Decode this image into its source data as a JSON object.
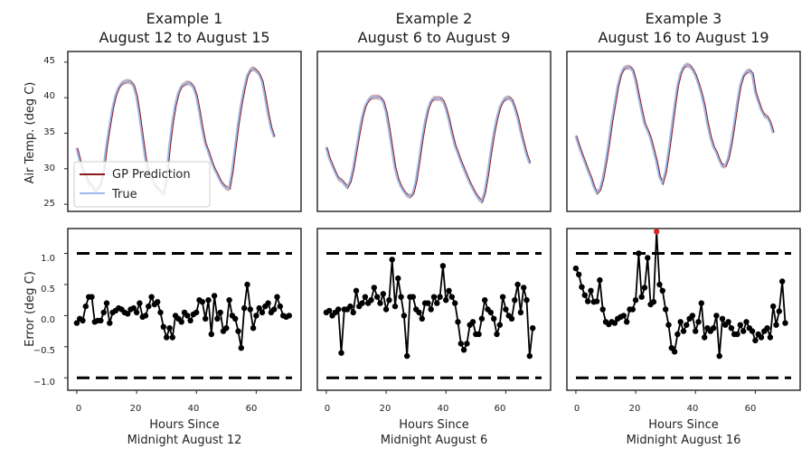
{
  "chart_data": [
    {
      "type": "line",
      "title_line1": "Example 1",
      "title_line2": "August 12 to August 15",
      "ylabel": "Air Temp. (deg C)",
      "ylim": [
        24,
        46.5
      ],
      "yticks": [
        "25",
        "30",
        "35",
        "40",
        "45"
      ],
      "series": [
        {
          "name": "GP Prediction",
          "color": "#8b1a1a",
          "values": [
            32.9,
            31.3,
            29.8,
            29.0,
            27.9,
            27.7,
            26.8,
            27.2,
            27.9,
            30.0,
            33.3,
            36.0,
            38.5,
            40.3,
            41.4,
            42.0,
            42.2,
            42.3,
            42.2,
            41.7,
            40.2,
            37.5,
            34.4,
            31.4,
            29.5,
            28.6,
            27.7,
            27.2,
            26.8,
            26.5,
            28.8,
            33.1,
            36.5,
            39.0,
            40.7,
            41.6,
            41.9,
            42.1,
            42.0,
            41.5,
            40.3,
            38.1,
            35.6,
            33.5,
            32.4,
            31.1,
            30.0,
            29.2,
            28.3,
            27.7,
            27.3,
            27.2,
            29.6,
            33.0,
            36.3,
            39.0,
            41.3,
            43.1,
            43.9,
            44.1,
            43.8,
            43.3,
            42.3,
            40.1,
            37.7,
            35.7,
            34.5
          ]
        },
        {
          "name": "True",
          "color": "#9db8e8",
          "values": [
            32.9,
            31.3,
            29.8,
            29.0,
            27.9,
            27.7,
            26.8,
            27.2,
            27.9,
            30.0,
            33.3,
            36.0,
            38.5,
            40.3,
            41.4,
            42.0,
            42.2,
            42.3,
            42.2,
            41.7,
            40.2,
            37.5,
            34.4,
            31.4,
            29.5,
            28.6,
            27.7,
            27.2,
            26.8,
            26.5,
            28.8,
            33.1,
            36.5,
            39.0,
            40.7,
            41.6,
            41.9,
            42.1,
            42.0,
            41.5,
            40.3,
            38.1,
            35.6,
            33.5,
            32.4,
            31.1,
            30.0,
            29.2,
            28.3,
            27.7,
            27.3,
            27.2,
            29.6,
            33.0,
            36.3,
            39.0,
            41.3,
            43.1,
            43.9,
            44.1,
            43.8,
            43.3,
            42.3,
            40.1,
            37.7,
            35.7,
            34.5
          ]
        }
      ],
      "legend": {
        "placement": "lower-left",
        "items": [
          "GP Prediction",
          "True"
        ]
      }
    },
    {
      "type": "line",
      "title_line1": "Example 2",
      "title_line2": "August 6 to August 9",
      "ylim": [
        24,
        46.5
      ],
      "series": [
        {
          "name": "GP Prediction",
          "color": "#8b1a1a",
          "values": [
            33.0,
            31.5,
            30.5,
            29.5,
            28.6,
            28.4,
            27.9,
            27.4,
            28.2,
            30.0,
            32.5,
            35.0,
            37.2,
            38.8,
            39.6,
            40.0,
            40.1,
            40.1,
            40.0,
            39.5,
            38.0,
            35.6,
            32.8,
            30.1,
            28.5,
            27.5,
            26.8,
            26.3,
            26.1,
            26.5,
            28.3,
            31.0,
            34.0,
            36.5,
            38.4,
            39.5,
            39.9,
            39.9,
            39.9,
            39.6,
            38.5,
            36.9,
            35.0,
            33.3,
            32.2,
            31.0,
            30.0,
            29.0,
            28.0,
            27.2,
            26.4,
            25.8,
            25.4,
            26.7,
            29.2,
            32.2,
            34.9,
            37.0,
            38.6,
            39.5,
            39.9,
            40.0,
            39.7,
            38.6,
            37.2,
            35.3,
            33.6,
            32.0,
            30.8
          ]
        },
        {
          "name": "True",
          "color": "#9db8e8",
          "values": [
            33.0,
            31.5,
            30.5,
            29.5,
            28.6,
            28.4,
            27.9,
            27.4,
            28.2,
            30.0,
            32.5,
            35.0,
            37.2,
            38.8,
            39.6,
            40.0,
            40.1,
            40.1,
            40.0,
            39.5,
            38.0,
            35.6,
            32.8,
            30.1,
            28.5,
            27.5,
            26.8,
            26.3,
            26.1,
            26.5,
            28.3,
            31.0,
            34.0,
            36.5,
            38.4,
            39.5,
            39.9,
            39.9,
            39.9,
            39.6,
            38.5,
            36.9,
            35.0,
            33.3,
            32.2,
            31.0,
            30.0,
            29.0,
            28.0,
            27.2,
            26.4,
            25.8,
            25.4,
            26.7,
            29.2,
            32.2,
            34.9,
            37.0,
            38.6,
            39.5,
            39.9,
            40.0,
            39.7,
            38.6,
            37.2,
            35.3,
            33.6,
            32.0,
            30.8
          ]
        }
      ]
    },
    {
      "type": "line",
      "title_line1": "Example 3",
      "title_line2": "August 16 to August 19",
      "ylim": [
        24,
        46.5
      ],
      "series": [
        {
          "name": "GP Prediction",
          "color": "#8b1a1a",
          "values": [
            34.6,
            33.3,
            32.1,
            31.0,
            29.8,
            28.8,
            27.5,
            26.6,
            27.0,
            28.5,
            30.8,
            33.5,
            36.5,
            39.0,
            41.5,
            43.2,
            44.1,
            44.3,
            44.3,
            43.9,
            42.4,
            40.2,
            38.2,
            36.3,
            35.4,
            34.3,
            32.7,
            31.0,
            28.9,
            28.0,
            29.5,
            32.3,
            35.4,
            38.6,
            41.6,
            43.4,
            44.3,
            44.6,
            44.5,
            44.0,
            43.2,
            42.0,
            40.6,
            38.8,
            36.4,
            34.5,
            33.1,
            32.3,
            31.2,
            30.4,
            30.4,
            31.5,
            33.6,
            36.3,
            39.2,
            41.7,
            43.1,
            43.6,
            43.8,
            43.4,
            40.8,
            39.5,
            38.3,
            37.5,
            37.3,
            36.5,
            35.1
          ]
        },
        {
          "name": "True",
          "color": "#9db8e8",
          "values": [
            34.6,
            33.3,
            32.1,
            31.0,
            29.8,
            28.8,
            27.5,
            26.6,
            27.0,
            28.5,
            30.8,
            33.5,
            36.5,
            39.0,
            41.5,
            43.2,
            44.1,
            44.3,
            44.3,
            43.9,
            42.4,
            40.2,
            38.2,
            36.3,
            35.4,
            34.3,
            32.7,
            31.0,
            28.9,
            28.0,
            29.5,
            32.3,
            35.4,
            38.6,
            41.6,
            43.4,
            44.3,
            44.6,
            44.5,
            44.0,
            43.2,
            42.0,
            40.6,
            38.8,
            36.4,
            34.5,
            33.1,
            32.3,
            31.2,
            30.4,
            30.4,
            31.5,
            33.6,
            36.3,
            39.2,
            41.7,
            43.1,
            43.6,
            43.8,
            43.4,
            40.8,
            39.5,
            38.3,
            37.5,
            37.3,
            36.5,
            35.1
          ]
        }
      ]
    },
    {
      "type": "scatter",
      "xlabel_line1": "Hours Since",
      "xlabel_line2": "Midnight August 12",
      "ylabel": "Error (deg C)",
      "xlim": [
        -3,
        75
      ],
      "ylim": [
        -1.2,
        1.4
      ],
      "xticks": [
        "0",
        "20",
        "40",
        "60"
      ],
      "yticks": [
        "1.0",
        "0.5",
        "0.0",
        "−0.5",
        "−1.0"
      ],
      "reference_lines": [
        1.0,
        -1.0
      ],
      "series": [
        {
          "name": "error",
          "color": "#000000",
          "values": [
            -0.12,
            -0.05,
            -0.08,
            0.15,
            0.3,
            0.3,
            -0.1,
            -0.08,
            -0.08,
            0.05,
            0.2,
            -0.12,
            0.05,
            0.08,
            0.12,
            0.1,
            0.05,
            0.03,
            0.1,
            0.12,
            0.05,
            0.2,
            -0.02,
            0.0,
            0.15,
            0.3,
            0.18,
            0.22,
            0.05,
            -0.18,
            -0.35,
            -0.2,
            -0.35,
            0.0,
            -0.05,
            -0.1,
            0.05,
            0.0,
            -0.08,
            0.02,
            0.05,
            0.25,
            0.22,
            -0.05,
            0.25,
            -0.3,
            0.32,
            -0.05,
            0.05,
            -0.25,
            -0.2,
            0.25,
            0.0,
            -0.05,
            -0.25,
            -0.52,
            0.12,
            0.5,
            0.1,
            -0.2,
            0.0,
            0.12,
            0.05,
            0.15,
            0.2,
            0.05,
            0.1,
            0.3,
            0.15,
            0.0,
            -0.02,
            0.0
          ]
        }
      ]
    },
    {
      "type": "scatter",
      "xlabel_line1": "Hours Since",
      "xlabel_line2": "Midnight August 6",
      "xlim": [
        -3,
        75
      ],
      "ylim": [
        -1.2,
        1.4
      ],
      "xticks": [
        "0",
        "20",
        "40",
        "60"
      ],
      "reference_lines": [
        1.0,
        -1.0
      ],
      "series": [
        {
          "name": "error",
          "color": "#000000",
          "values": [
            0.05,
            0.08,
            0.0,
            0.05,
            0.1,
            -0.6,
            0.1,
            0.1,
            0.15,
            0.05,
            0.4,
            0.15,
            0.2,
            0.3,
            0.2,
            0.25,
            0.45,
            0.3,
            0.2,
            0.35,
            0.1,
            0.25,
            0.9,
            0.15,
            0.6,
            0.3,
            0.0,
            -0.65,
            0.3,
            0.3,
            0.1,
            0.05,
            -0.05,
            0.2,
            0.2,
            0.1,
            0.3,
            0.2,
            0.3,
            0.8,
            0.25,
            0.4,
            0.3,
            0.2,
            -0.1,
            -0.45,
            -0.55,
            -0.45,
            -0.15,
            -0.1,
            -0.3,
            -0.3,
            -0.05,
            0.25,
            0.1,
            0.05,
            -0.05,
            -0.3,
            -0.15,
            0.3,
            0.1,
            0.0,
            -0.05,
            0.25,
            0.5,
            0.05,
            0.45,
            0.25,
            -0.65,
            -0.2
          ]
        }
      ]
    },
    {
      "type": "scatter",
      "xlabel_line1": "Hours Since",
      "xlabel_line2": "Midnight August 16",
      "xlim": [
        -3,
        75
      ],
      "ylim": [
        -1.2,
        1.4
      ],
      "xticks": [
        "0",
        "20",
        "40",
        "60"
      ],
      "reference_lines": [
        1.0,
        -1.0
      ],
      "series": [
        {
          "name": "error",
          "color": "#000000",
          "values": [
            0.76,
            0.66,
            0.46,
            0.33,
            0.23,
            0.4,
            0.22,
            0.23,
            0.57,
            0.1,
            -0.1,
            -0.14,
            -0.1,
            -0.12,
            -0.05,
            -0.02,
            0.0,
            -0.1,
            0.1,
            0.1,
            0.25,
            1.0,
            0.3,
            0.45,
            0.93,
            0.18,
            0.22,
            1.35,
            0.5,
            0.4,
            0.1,
            -0.15,
            -0.52,
            -0.58,
            -0.3,
            -0.1,
            -0.25,
            -0.15,
            -0.05,
            0.0,
            -0.25,
            -0.1,
            0.2,
            -0.35,
            -0.2,
            -0.25,
            -0.2,
            0.0,
            -0.65,
            -0.05,
            -0.15,
            -0.1,
            -0.2,
            -0.3,
            -0.3,
            -0.15,
            -0.25,
            -0.1,
            -0.2,
            -0.25,
            -0.4,
            -0.3,
            -0.35,
            -0.25,
            -0.2,
            -0.35,
            0.15,
            -0.15,
            0.07,
            0.55,
            -0.12
          ]
        }
      ],
      "highlight": {
        "index": 27,
        "color": "#d62728"
      }
    }
  ]
}
